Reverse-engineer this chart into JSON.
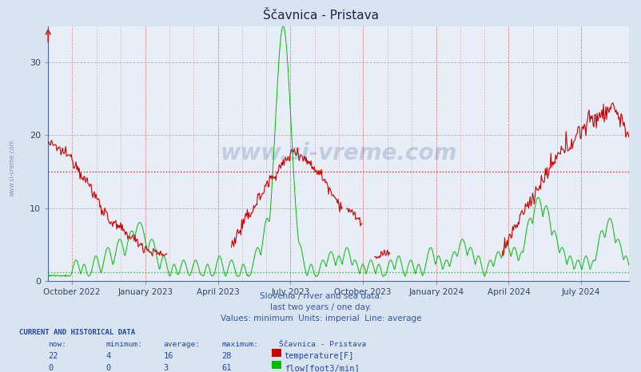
{
  "title": "Ščavnica - Pristava",
  "background_color": "#d8e4f0",
  "plot_bg_color": "#e8eef8",
  "x_labels": [
    "October 2022",
    "January 2023",
    "April 2023",
    "July 2023",
    "October 2023",
    "January 2024",
    "April 2024",
    "July 2024"
  ],
  "y_ticks": [
    0,
    10,
    20,
    30
  ],
  "ylim": [
    0,
    35
  ],
  "temp_avg": 15,
  "flow_avg": 1.2,
  "subtitle_lines": [
    "Slovenia / river and sea data.",
    "last two years / one day.",
    "Values: minimum  Units: imperial  Line: average"
  ],
  "info_header": "CURRENT AND HISTORICAL DATA",
  "temp_row": [
    "22",
    "4",
    "16",
    "28",
    "temperature[F]"
  ],
  "flow_row": [
    "0",
    "0",
    "3",
    "61",
    "flow[foot3/min]"
  ],
  "temp_color": "#cc0000",
  "flow_color": "#00bb00",
  "watermark": "www.si-vreme.com",
  "n_points": 730,
  "tick_positions": [
    30,
    122,
    213,
    304,
    395,
    487,
    578,
    669
  ]
}
